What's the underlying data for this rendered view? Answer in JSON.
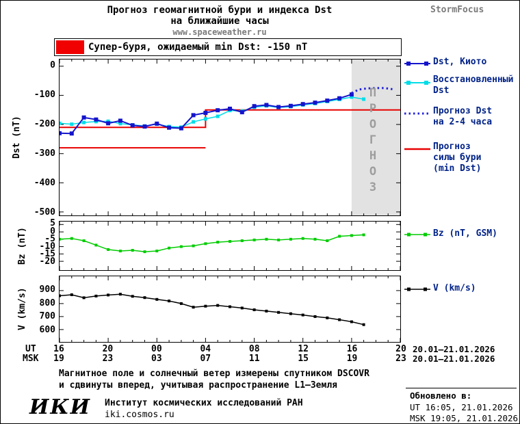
{
  "header": {
    "title_line1": "Прогноз геомагнитной бури и индекса Dst",
    "title_line2": "на ближайшие часы",
    "website": "www.spaceweather.ru",
    "brand": "StormFocus"
  },
  "alert_banner": {
    "label": "Супер-буря, ожидаемый min Dst: -150 nT"
  },
  "colors": {
    "dst_kyoto": "#1414cc",
    "restored_dst": "#00dde8",
    "forecast_dst": "#2222dd",
    "forecast_storm": "#e80000",
    "bz": "#00cc00",
    "v": "#000000",
    "alert": "#f00000",
    "forecast_region": "#e2e2e2",
    "watermark": "#9d9d9d",
    "muted": "#7a7a7a",
    "legend_text": "#002288"
  },
  "legend": {
    "dst_kyoto": "Dst, Киото",
    "restored_dst": "Восстановленный\nDst",
    "forecast_dst": "Прогноз Dst\nна 2-4 часа",
    "forecast_storm": "Прогноз\nсилы бури\n(min Dst)",
    "bz": "Bz (nT, GSM)",
    "v": "V (km/s)"
  },
  "axes": {
    "dst_ylabel": "Dst (nT)",
    "bz_ylabel": "Bz (nT)",
    "v_ylabel": "V (km/s)",
    "dst_yticks": [
      "0",
      "-100",
      "-200",
      "-300",
      "-400",
      "-500"
    ],
    "bz_yticks": [
      "5",
      "0",
      "-5",
      "-10",
      "-15",
      "-20"
    ],
    "v_yticks": [
      "900",
      "800",
      "700",
      "600"
    ],
    "ut_label": "UT",
    "msk_label": "MSK",
    "ut_ticks": [
      "16",
      "20",
      "00",
      "04",
      "08",
      "12",
      "16",
      "20"
    ],
    "msk_ticks": [
      "19",
      "23",
      "03",
      "07",
      "11",
      "15",
      "19",
      "23"
    ],
    "ut_date_range": "20.01–21.01.2026",
    "msk_date_range": "20.01–21.01.2026"
  },
  "watermark_text": "ПРОГНОЗ",
  "footnote": {
    "line1": "Магнитное поле и солнечный ветер измерены спутником DSCOVR",
    "line2": "и сдвинуты вперед, учитывая распространение L1–Земля"
  },
  "footer": {
    "logo": "ИКИ",
    "institute": "Институт космических исследований РАН",
    "site": "iki.cosmos.ru",
    "updated_label": "Обновлено в:",
    "updated_ut": "UT  16:05, 21.01.2026",
    "updated_msk": "MSK 19:05, 21.01.2026"
  },
  "chart_data": [
    {
      "name": "dst-chart",
      "type": "line",
      "title": "Dst index: measured, restored and forecast",
      "x_description": "hours since 16:00 UT 20.01.2026; labeled ticks every 4 h (UT 16,20,00,04,08,12,16,20)",
      "xlim": [
        0,
        28
      ],
      "ylim": [
        -512,
        23
      ],
      "ylabel": "Dst (nT)",
      "yticks": [
        0,
        -100,
        -200,
        -300,
        -400,
        -500
      ],
      "xticks": [
        0,
        4,
        8,
        12,
        16,
        20,
        24,
        28
      ],
      "forecast_region": [
        24,
        28
      ],
      "series": [
        {
          "name": "Прогноз силы бури (min Dst) — предыдущий уровень",
          "color": "#e80000",
          "width": 2,
          "marker": false,
          "x": [
            0,
            12
          ],
          "values": [
            -280,
            -280
          ]
        },
        {
          "name": "Прогноз силы бури (min Dst)",
          "color": "#e80000",
          "width": 2,
          "marker": false,
          "x": [
            0,
            12,
            12,
            28
          ],
          "values": [
            -210,
            -210,
            -150,
            -150
          ]
        },
        {
          "name": "Восстановленный Dst",
          "color": "#00dde8",
          "width": 1.5,
          "marker": true,
          "marker_size": 5,
          "x": [
            0,
            1,
            2,
            3,
            4,
            5,
            6,
            7,
            8,
            9,
            10,
            11,
            12,
            13,
            14,
            15,
            16,
            17,
            18,
            19,
            20,
            21,
            22,
            23,
            24,
            25
          ],
          "values": [
            -196,
            -199,
            -193,
            -190,
            -189,
            -197,
            -201,
            -205,
            -199,
            -207,
            -209,
            -191,
            -181,
            -172,
            -152,
            -154,
            -141,
            -136,
            -142,
            -139,
            -133,
            -128,
            -121,
            -114,
            -106,
            -113
          ]
        },
        {
          "name": "Dst, Киото",
          "color": "#1414cc",
          "width": 2,
          "marker": true,
          "marker_size": 6,
          "x": [
            0,
            1,
            2,
            3,
            4,
            5,
            6,
            7,
            8,
            9,
            10,
            11,
            12,
            13,
            14,
            15,
            16,
            17,
            18,
            19,
            20,
            21,
            22,
            23,
            24
          ],
          "values": [
            -230,
            -231,
            -176,
            -183,
            -196,
            -187,
            -203,
            -207,
            -197,
            -211,
            -213,
            -168,
            -160,
            -151,
            -146,
            -158,
            -137,
            -133,
            -140,
            -136,
            -130,
            -125,
            -118,
            -110,
            -97
          ]
        },
        {
          "name": "Прогноз Dst на 2-4 часа",
          "color": "#2222dd",
          "width": 3,
          "marker": false,
          "dash": "2.5 4",
          "x": [
            24,
            24.6,
            25.3,
            26,
            26.7,
            27.4
          ],
          "values": [
            -92,
            -80,
            -76,
            -75,
            -75,
            -79
          ]
        }
      ]
    },
    {
      "name": "bz-chart",
      "type": "line",
      "title": "Bz (nT, GSM)",
      "x_description": "hours since 16:00 UT 20.01.2026",
      "xlim": [
        0,
        28
      ],
      "ylim": [
        -26,
        7
      ],
      "ylabel": "Bz (nT)",
      "yticks": [
        5,
        0,
        -5,
        -10,
        -15,
        -20
      ],
      "xticks": [
        0,
        4,
        8,
        12,
        16,
        20,
        24,
        28
      ],
      "series": [
        {
          "name": "Bz (nT, GSM)",
          "color": "#00cc00",
          "width": 1.5,
          "marker": true,
          "marker_size": 4,
          "x": [
            0,
            1,
            2,
            3,
            4,
            5,
            6,
            7,
            8,
            9,
            10,
            11,
            12,
            13,
            14,
            15,
            16,
            17,
            18,
            19,
            20,
            21,
            22,
            23,
            24,
            25
          ],
          "values": [
            -5,
            -4.5,
            -6,
            -9,
            -12,
            -13,
            -12.5,
            -13.5,
            -13,
            -11,
            -10,
            -9.5,
            -8,
            -7,
            -6.5,
            -6,
            -5.5,
            -5,
            -5.5,
            -5,
            -4.5,
            -5,
            -6,
            -3,
            -2.5,
            -2
          ]
        }
      ]
    },
    {
      "name": "v-chart",
      "type": "line",
      "title": "Solar wind speed V (km/s)",
      "x_description": "hours since 16:00 UT 20.01.2026",
      "xlim": [
        0,
        28
      ],
      "ylim": [
        505,
        1010
      ],
      "ylabel": "V (km/s)",
      "yticks": [
        900,
        800,
        700,
        600
      ],
      "xticks": [
        0,
        4,
        8,
        12,
        16,
        20,
        24,
        28
      ],
      "series": [
        {
          "name": "V (km/s)",
          "color": "#000000",
          "width": 1.5,
          "marker": true,
          "marker_size": 4,
          "x": [
            0,
            1,
            2,
            3,
            4,
            5,
            6,
            7,
            8,
            9,
            10,
            11,
            12,
            13,
            14,
            15,
            16,
            17,
            18,
            19,
            20,
            21,
            22,
            23,
            24,
            25
          ],
          "values": [
            860,
            868,
            845,
            858,
            866,
            872,
            856,
            846,
            832,
            820,
            800,
            772,
            780,
            786,
            776,
            766,
            752,
            742,
            732,
            722,
            712,
            700,
            690,
            676,
            660,
            638
          ]
        }
      ]
    }
  ]
}
